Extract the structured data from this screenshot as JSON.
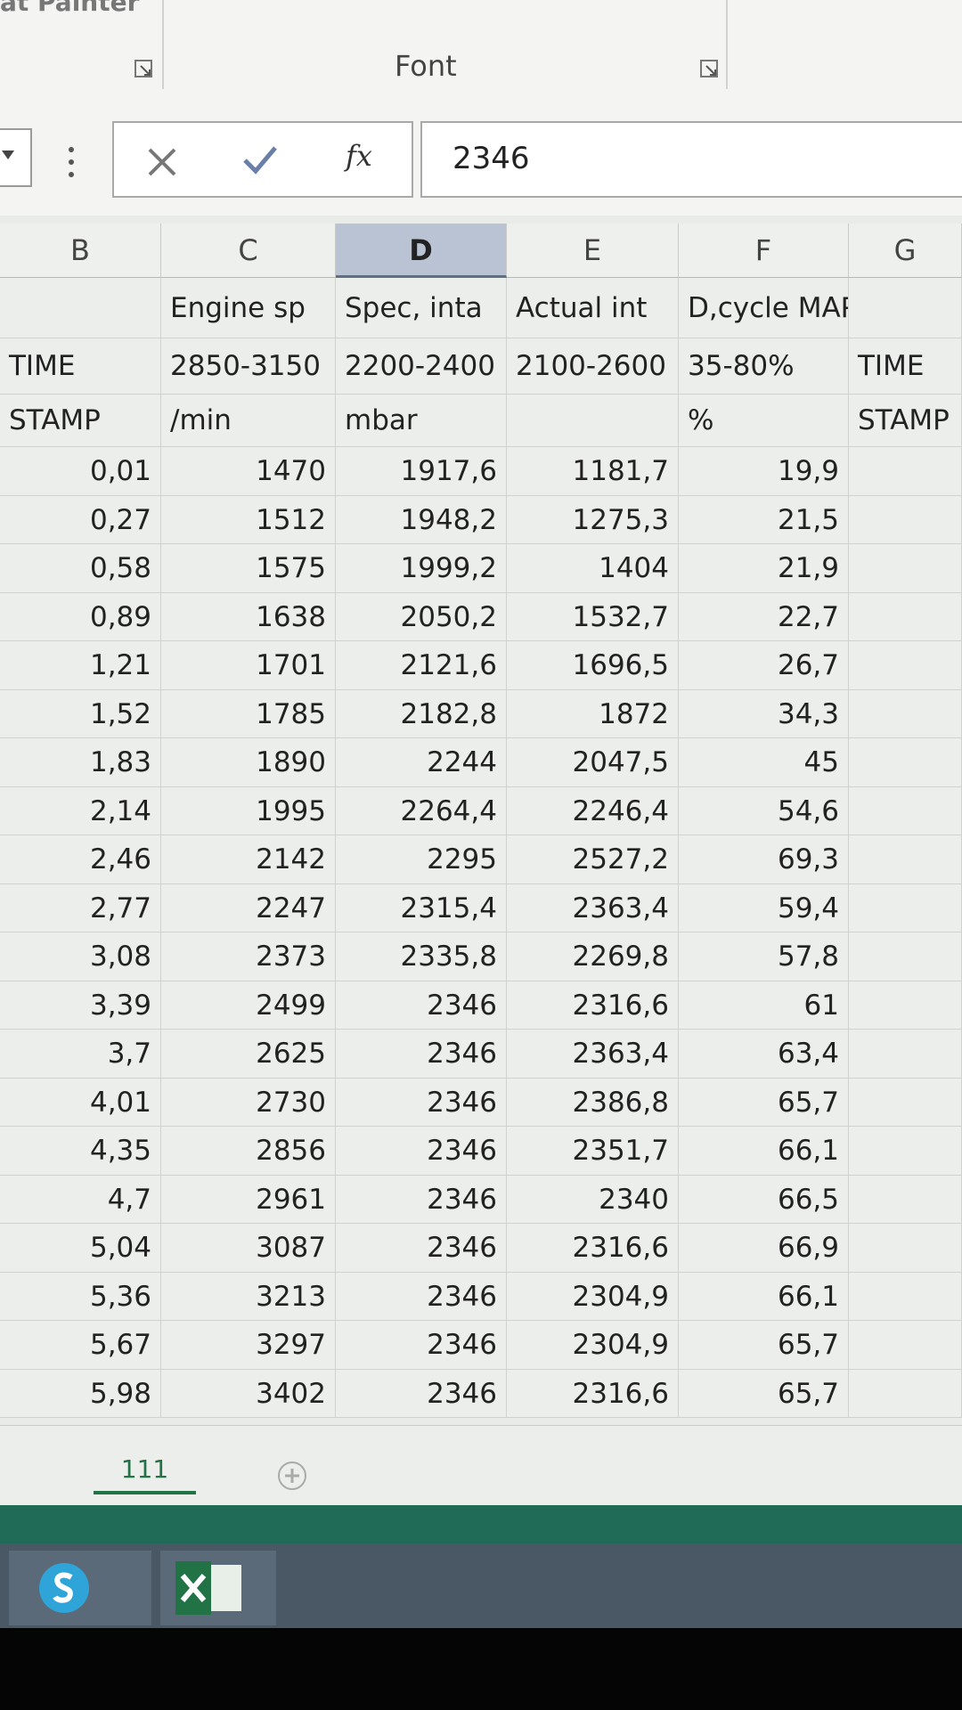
{
  "ribbon": {
    "clipboard_label": "at Painter",
    "font_label": "Font"
  },
  "formula_bar": {
    "function_label": "fx",
    "value": "2346"
  },
  "sheet": {
    "columns": [
      "B",
      "C",
      "D",
      "E",
      "F",
      "G"
    ],
    "selected_column_index": 2,
    "header_rows": [
      [
        null,
        "Engine sp",
        "Spec, inta",
        "Actual int",
        "D,cycle MAP",
        null
      ],
      [
        "TIME",
        "2850-3150",
        "2200-2400",
        "2100-2600",
        "35-80%",
        "TIME"
      ],
      [
        "STAMP",
        "/min",
        "mbar",
        null,
        "%",
        "STAMP"
      ]
    ],
    "rows": [
      [
        "0,01",
        "1470",
        "1917,6",
        "1181,7",
        "19,9"
      ],
      [
        "0,27",
        "1512",
        "1948,2",
        "1275,3",
        "21,5"
      ],
      [
        "0,58",
        "1575",
        "1999,2",
        "1404",
        "21,9"
      ],
      [
        "0,89",
        "1638",
        "2050,2",
        "1532,7",
        "22,7"
      ],
      [
        "1,21",
        "1701",
        "2121,6",
        "1696,5",
        "26,7"
      ],
      [
        "1,52",
        "1785",
        "2182,8",
        "1872",
        "34,3"
      ],
      [
        "1,83",
        "1890",
        "2244",
        "2047,5",
        "45"
      ],
      [
        "2,14",
        "1995",
        "2264,4",
        "2246,4",
        "54,6"
      ],
      [
        "2,46",
        "2142",
        "2295",
        "2527,2",
        "69,3"
      ],
      [
        "2,77",
        "2247",
        "2315,4",
        "2363,4",
        "59,4"
      ],
      [
        "3,08",
        "2373",
        "2335,8",
        "2269,8",
        "57,8"
      ],
      [
        "3,39",
        "2499",
        "2346",
        "2316,6",
        "61"
      ],
      [
        "3,7",
        "2625",
        "2346",
        "2363,4",
        "63,4"
      ],
      [
        "4,01",
        "2730",
        "2346",
        "2386,8",
        "65,7"
      ],
      [
        "4,35",
        "2856",
        "2346",
        "2351,7",
        "66,1"
      ],
      [
        "4,7",
        "2961",
        "2346",
        "2340",
        "66,5"
      ],
      [
        "5,04",
        "3087",
        "2346",
        "2316,6",
        "66,9"
      ],
      [
        "5,36",
        "3213",
        "2346",
        "2304,9",
        "66,1"
      ],
      [
        "5,67",
        "3297",
        "2346",
        "2304,9",
        "65,7"
      ],
      [
        "5,98",
        "3402",
        "2346",
        "2316,6",
        "65,7"
      ]
    ]
  },
  "tabs": [
    "111"
  ]
}
